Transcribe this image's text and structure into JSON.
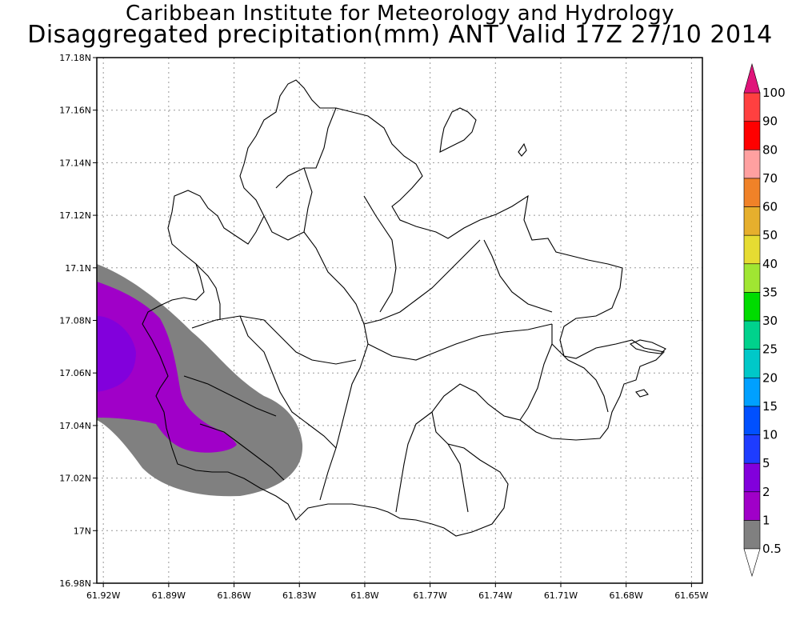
{
  "title_line1": "Caribbean Institute for Meteorology and Hydrology",
  "title_line2": "Disaggregated precipitation(mm) ANT Valid 17Z 27/10 2014",
  "map": {
    "lon_range": [
      -61.923,
      -61.645
    ],
    "lat_range": [
      16.98,
      17.18
    ],
    "lat_ticks": [
      {
        "value": 17.18,
        "label": "17.18N"
      },
      {
        "value": 17.16,
        "label": "17.16N"
      },
      {
        "value": 17.14,
        "label": "17.14N"
      },
      {
        "value": 17.12,
        "label": "17.12N"
      },
      {
        "value": 17.1,
        "label": "17.1N"
      },
      {
        "value": 17.08,
        "label": "17.08N"
      },
      {
        "value": 17.06,
        "label": "17.06N"
      },
      {
        "value": 17.04,
        "label": "17.04N"
      },
      {
        "value": 17.02,
        "label": "17.02N"
      },
      {
        "value": 17.0,
        "label": "17N"
      },
      {
        "value": 16.98,
        "label": "16.98N"
      }
    ],
    "lon_ticks": [
      {
        "value": -61.92,
        "label": "61.92W"
      },
      {
        "value": -61.89,
        "label": "61.89W"
      },
      {
        "value": -61.86,
        "label": "61.86W"
      },
      {
        "value": -61.83,
        "label": "61.83W"
      },
      {
        "value": -61.8,
        "label": "61.8W"
      },
      {
        "value": -61.77,
        "label": "61.77W"
      },
      {
        "value": -61.74,
        "label": "61.74W"
      },
      {
        "value": -61.71,
        "label": "61.71W"
      },
      {
        "value": -61.68,
        "label": "61.68W"
      },
      {
        "value": -61.65,
        "label": "61.65W"
      }
    ],
    "grid": "dotted",
    "island": "Antigua"
  },
  "precip_levels": [
    {
      "from": 0.5,
      "to": 1,
      "color": "#808080"
    },
    {
      "from": 1,
      "to": 2,
      "color": "#a000c8"
    },
    {
      "from": 2,
      "to": 5,
      "color": "#8200dc"
    }
  ],
  "colorbar": {
    "labels": [
      "0.5",
      "1",
      "2",
      "5",
      "10",
      "15",
      "20",
      "25",
      "30",
      "35",
      "40",
      "50",
      "60",
      "70",
      "80",
      "90",
      "100"
    ],
    "colors": [
      "#808080",
      "#a000c8",
      "#8200dc",
      "#1e3cff",
      "#0050ff",
      "#00a0ff",
      "#00c8c8",
      "#00d28c",
      "#00dc00",
      "#a0e632",
      "#e6dc32",
      "#e6af2d",
      "#f08228",
      "#ffa0a0",
      "#ff0000",
      "#ff4040"
    ],
    "over_color": "#e0147a",
    "under_color": "#ffffff"
  }
}
